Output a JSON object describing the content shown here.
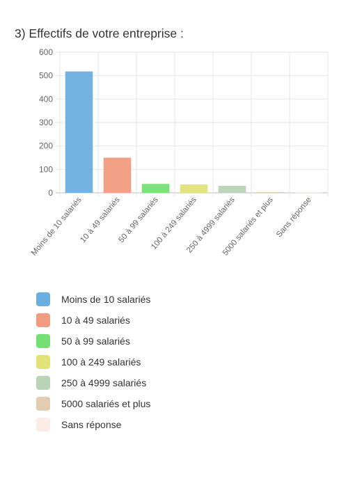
{
  "page": {
    "title": "3) Effectifs de votre entreprise :"
  },
  "chart_data": {
    "type": "bar",
    "categories": [
      "Moins de 10 salariés",
      "10 à 49 salariés",
      "50 à 99 salariés",
      "100 à 249 salariés",
      "250 à 4999 salariés",
      "5000 salariés et plus",
      "Sans réponse"
    ],
    "values": [
      518,
      150,
      38,
      36,
      30,
      3,
      1
    ],
    "colors": [
      "#6baedf",
      "#f19b80",
      "#74df74",
      "#e2e27a",
      "#b8d3b5",
      "#e2cdb2",
      "#fbede6"
    ],
    "ylim": [
      0,
      600
    ],
    "yticks": [
      0,
      100,
      200,
      300,
      400,
      500,
      600
    ],
    "grid": true,
    "legend_position": "bottom-left",
    "title": "3) Effectifs de votre entreprise :",
    "xlabel": "",
    "ylabel": ""
  }
}
